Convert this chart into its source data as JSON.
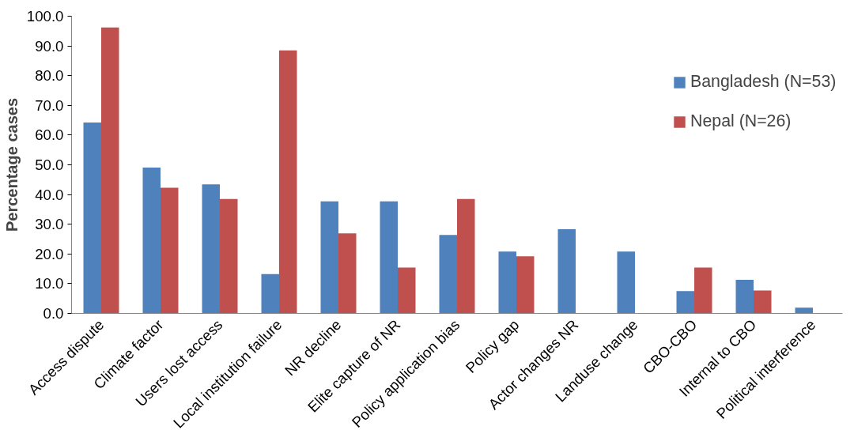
{
  "chart_data": {
    "type": "bar",
    "ylabel": "Percentage cases",
    "categories": [
      "Access dispute",
      "Climate factor",
      "Users lost access",
      "Local institution failure",
      "NR decline",
      "Elite capture of NR",
      "Policy application bias",
      "Policy gap",
      "Actor changes NR",
      "Landuse change",
      "CBO-CBO",
      "Internal to CBO",
      "Political interference"
    ],
    "series": [
      {
        "name": "Bangladesh (N=53)",
        "color": "#4f81bd",
        "values": [
          64.2,
          49.1,
          43.4,
          13.2,
          37.7,
          37.7,
          26.4,
          20.8,
          28.3,
          20.8,
          7.5,
          11.3,
          1.9
        ]
      },
      {
        "name": "Nepal (N=26)",
        "color": "#c0504d",
        "values": [
          96.2,
          42.3,
          38.5,
          88.5,
          26.9,
          15.4,
          38.5,
          19.2,
          0,
          0,
          15.4,
          7.7,
          0
        ]
      }
    ],
    "ylim": [
      0,
      100
    ],
    "yticks": [
      {
        "value": 0,
        "label": "0.0"
      },
      {
        "value": 10,
        "label": "10.0"
      },
      {
        "value": 20,
        "label": "20.0"
      },
      {
        "value": 30,
        "label": "30.0"
      },
      {
        "value": 40,
        "label": "40.0"
      },
      {
        "value": 50,
        "label": "50.0"
      },
      {
        "value": 60,
        "label": "60.0"
      },
      {
        "value": 70,
        "label": "70.0"
      },
      {
        "value": 80,
        "label": "80.0"
      },
      {
        "value": 90,
        "label": "90.0"
      },
      {
        "value": 100,
        "label": "100.0"
      }
    ],
    "grid": false,
    "legend": "right"
  }
}
